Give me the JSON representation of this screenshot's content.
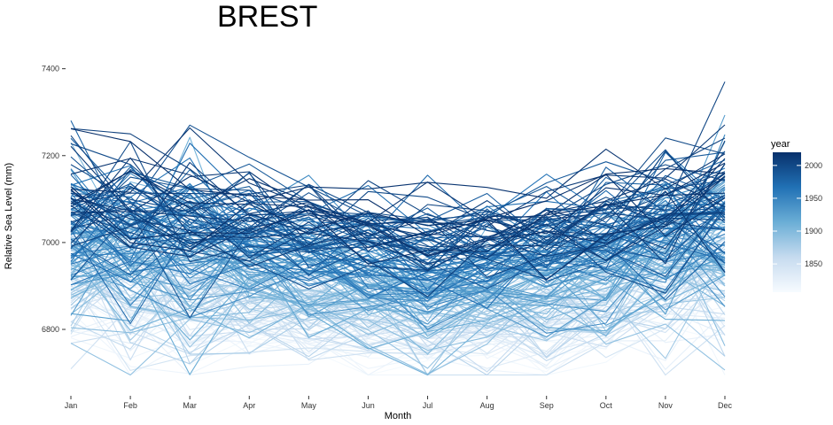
{
  "chart_data": {
    "type": "line",
    "title": "BREST",
    "xlabel": "Month",
    "ylabel": "Relative Sea Level (mm)",
    "categories": [
      "Jan",
      "Feb",
      "Mar",
      "Apr",
      "May",
      "Jun",
      "Jul",
      "Aug",
      "Sep",
      "Oct",
      "Nov",
      "Dec"
    ],
    "ylim": [
      6690,
      7440
    ],
    "yticks": [
      6800,
      7000,
      7200,
      7400
    ],
    "grid": false,
    "legend": {
      "title": "year",
      "position": "right",
      "range": [
        1807,
        2020
      ],
      "ticks": [
        1850,
        1900,
        1950,
        2000
      ],
      "colors": [
        "#f7fbff",
        "#c6dbef",
        "#6baed6",
        "#2171b5",
        "#08306b"
      ]
    },
    "series_summary": {
      "year_start": 1807,
      "year_end": 2020,
      "seasonal_cycle_mm": [
        110,
        85,
        70,
        55,
        40,
        20,
        10,
        15,
        30,
        60,
        95,
        115
      ],
      "trend_mm": [
        -120,
        150
      ]
    }
  }
}
